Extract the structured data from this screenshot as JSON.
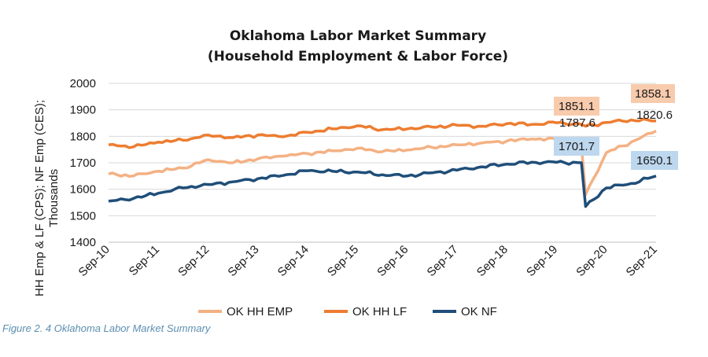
{
  "caption": "Figure 2. 4 Oklahoma Labor Market Summary",
  "colors": {
    "hh_emp": "#f4b183",
    "hh_lf": "#ed7d31",
    "nf": "#1f4e79",
    "label_orange_bg": "#f8cbad",
    "label_blue_bg": "#bdd7ee"
  },
  "chart_data": {
    "type": "line",
    "title": [
      "Oklahoma Labor Market Summary",
      "(Household Employment & Labor Force)"
    ],
    "ylabel": [
      "HH Emp & LF (CPS); NF Emp (CES);",
      "Thousands"
    ],
    "xlabel": "",
    "ylim": [
      1400,
      2000
    ],
    "yticks": [
      1400,
      1500,
      1600,
      1700,
      1800,
      1900,
      2000
    ],
    "x_categories": [
      "Sep-10",
      "Sep-11",
      "Sep-12",
      "Sep-13",
      "Sep-14",
      "Sep-15",
      "Sep-16",
      "Sep-17",
      "Sep-18",
      "Sep-19",
      "Sep-20",
      "Sep-21"
    ],
    "grid": "horizontal",
    "legend": "bottom",
    "series": [
      {
        "name": "OK HH EMP",
        "color": "#f4b183",
        "points": [
          [
            "Sep-10",
            1658
          ],
          [
            "Mar-11",
            1650
          ],
          [
            "Sep-11",
            1668
          ],
          [
            "Mar-12",
            1680
          ],
          [
            "Sep-12",
            1712
          ],
          [
            "Mar-13",
            1700
          ],
          [
            "Sep-13",
            1715
          ],
          [
            "Mar-14",
            1725
          ],
          [
            "Sep-14",
            1735
          ],
          [
            "Mar-15",
            1745
          ],
          [
            "Sep-15",
            1755
          ],
          [
            "Mar-16",
            1742
          ],
          [
            "Sep-16",
            1748
          ],
          [
            "Mar-17",
            1758
          ],
          [
            "Sep-17",
            1768
          ],
          [
            "Mar-18",
            1775
          ],
          [
            "Sep-18",
            1782
          ],
          [
            "Mar-19",
            1790
          ],
          [
            "Sep-19",
            1787.6
          ],
          [
            "Mar-20",
            1765
          ],
          [
            "Apr-20",
            1580
          ],
          [
            "Sep-20",
            1738
          ],
          [
            "Mar-21",
            1778
          ],
          [
            "Sep-21",
            1820.6
          ]
        ]
      },
      {
        "name": "OK HH LF",
        "color": "#ed7d31",
        "points": [
          [
            "Sep-10",
            1768
          ],
          [
            "Mar-11",
            1760
          ],
          [
            "Sep-11",
            1778
          ],
          [
            "Mar-12",
            1785
          ],
          [
            "Sep-12",
            1805
          ],
          [
            "Mar-13",
            1795
          ],
          [
            "Sep-13",
            1805
          ],
          [
            "Mar-14",
            1798
          ],
          [
            "Sep-14",
            1815
          ],
          [
            "Mar-15",
            1828
          ],
          [
            "Sep-15",
            1840
          ],
          [
            "Mar-16",
            1825
          ],
          [
            "Sep-16",
            1828
          ],
          [
            "Mar-17",
            1835
          ],
          [
            "Sep-17",
            1842
          ],
          [
            "Mar-18",
            1838
          ],
          [
            "Sep-18",
            1848
          ],
          [
            "Mar-19",
            1845
          ],
          [
            "Sep-19",
            1851.1
          ],
          [
            "Mar-20",
            1845
          ],
          [
            "Apr-20",
            1838
          ],
          [
            "Sep-20",
            1852
          ],
          [
            "Mar-21",
            1862
          ],
          [
            "Sep-21",
            1858.1
          ]
        ]
      },
      {
        "name": "OK NF",
        "color": "#1f4e79",
        "points": [
          [
            "Sep-10",
            1555
          ],
          [
            "Mar-11",
            1565
          ],
          [
            "Sep-11",
            1585
          ],
          [
            "Mar-12",
            1605
          ],
          [
            "Sep-12",
            1618
          ],
          [
            "Mar-13",
            1628
          ],
          [
            "Sep-13",
            1640
          ],
          [
            "Mar-14",
            1652
          ],
          [
            "Sep-14",
            1670
          ],
          [
            "Mar-15",
            1668
          ],
          [
            "Sep-15",
            1665
          ],
          [
            "Mar-16",
            1655
          ],
          [
            "Sep-16",
            1650
          ],
          [
            "Mar-17",
            1662
          ],
          [
            "Sep-17",
            1672
          ],
          [
            "Mar-18",
            1685
          ],
          [
            "Sep-18",
            1695
          ],
          [
            "Mar-19",
            1702
          ],
          [
            "Sep-19",
            1701.7
          ],
          [
            "Mar-20",
            1700
          ],
          [
            "Apr-20",
            1535
          ],
          [
            "Sep-20",
            1605
          ],
          [
            "Mar-21",
            1622
          ],
          [
            "Sep-21",
            1650.1
          ]
        ]
      }
    ],
    "data_labels": [
      {
        "text": "1851.1",
        "series": "OK HH LF",
        "style": "orange"
      },
      {
        "text": "1787.6",
        "series": "OK HH EMP",
        "style": "plain"
      },
      {
        "text": "1701.7",
        "series": "OK NF",
        "style": "blue"
      },
      {
        "text": "1858.1",
        "series": "OK HH LF",
        "style": "orange"
      },
      {
        "text": "1820.6",
        "series": "OK HH EMP",
        "style": "plain"
      },
      {
        "text": "1650.1",
        "series": "OK NF",
        "style": "blue"
      }
    ]
  }
}
